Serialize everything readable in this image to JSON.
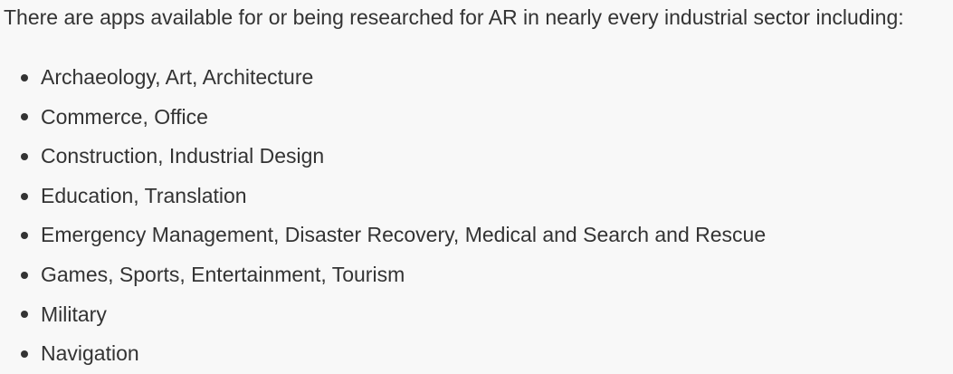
{
  "intro": "There are apps available for or being researched for AR in nearly every industrial sector including:",
  "sectors": [
    "Archaeology, Art, Architecture",
    "Commerce, Office",
    "Construction, Industrial Design",
    "Education, Translation",
    "Emergency Management, Disaster Recovery, Medical and Search and Rescue",
    "Games, Sports, Entertainment, Tourism",
    "Military",
    "Navigation"
  ],
  "colors": {
    "background": "#f8f8f8",
    "text": "#333333"
  }
}
